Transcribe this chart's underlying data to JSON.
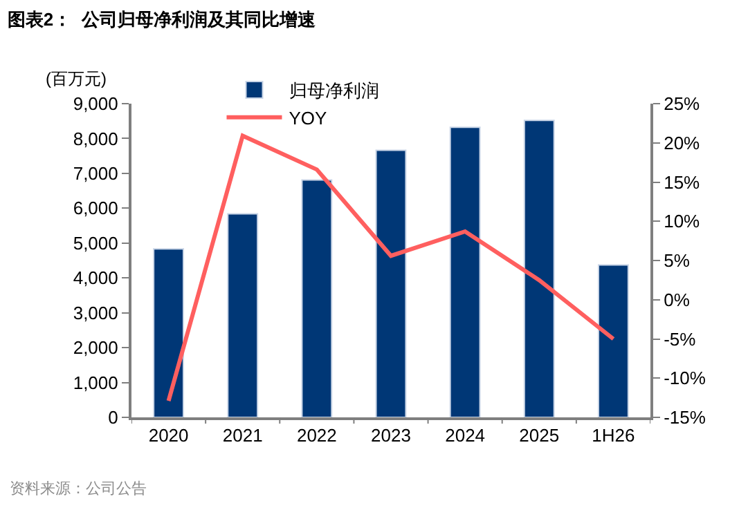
{
  "chart_data": {
    "type": "bar",
    "title": "图表2：  公司归母净利润及其同比增速",
    "ylabel": "(百万元)",
    "categories": [
      "2020",
      "2021",
      "2022",
      "2023",
      "2024",
      "2025",
      "1H26"
    ],
    "series": [
      {
        "name": "归母净利润",
        "color": "#003776",
        "values": [
          4830,
          5840,
          6810,
          7660,
          8320,
          8520,
          4370
        ]
      },
      {
        "name": "YOY",
        "type": "line",
        "axis": "y2",
        "color": "#ff5f5f",
        "values": [
          -12.9,
          20.9,
          16.6,
          5.6,
          8.7,
          2.5,
          -5.0
        ]
      }
    ],
    "ylim": [
      0,
      9000
    ],
    "yticks": [
      {
        "value": 0,
        "label": "0"
      },
      {
        "value": 1000,
        "label": "1,000"
      },
      {
        "value": 2000,
        "label": "2,000"
      },
      {
        "value": 3000,
        "label": "3,000"
      },
      {
        "value": 4000,
        "label": "4,000"
      },
      {
        "value": 5000,
        "label": "5,000"
      },
      {
        "value": 6000,
        "label": "6,000"
      },
      {
        "value": 7000,
        "label": "7,000"
      },
      {
        "value": 8000,
        "label": "8,000"
      },
      {
        "value": 9000,
        "label": "9,000"
      }
    ],
    "y2lim": [
      -15,
      25
    ],
    "y2ticks": [
      {
        "value": -15,
        "label": "-15%"
      },
      {
        "value": -10,
        "label": "-10%"
      },
      {
        "value": -5,
        "label": "-5%"
      },
      {
        "value": 0,
        "label": "0%"
      },
      {
        "value": 5,
        "label": "5%"
      },
      {
        "value": 10,
        "label": "10%"
      },
      {
        "value": 15,
        "label": "15%"
      },
      {
        "value": 20,
        "label": "20%"
      },
      {
        "value": 25,
        "label": "25%"
      }
    ],
    "legend": "top",
    "marker": "none",
    "line_style": "solid",
    "annotations": [
      "资料来源：公司公告"
    ]
  }
}
